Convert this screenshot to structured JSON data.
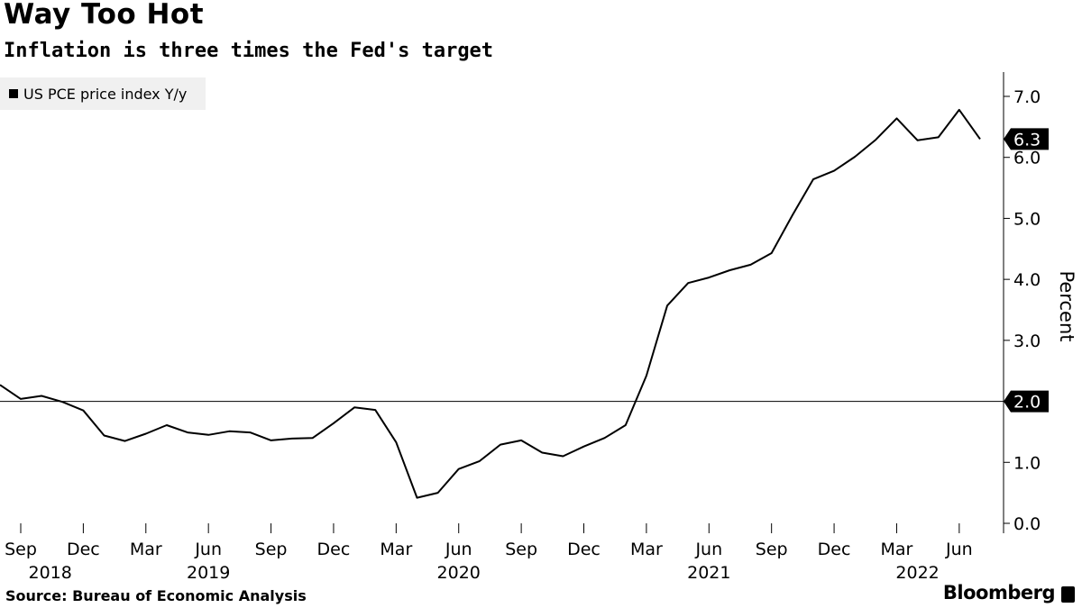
{
  "header": {
    "title": "Way Too Hot",
    "subtitle": "Inflation is three times the Fed's target"
  },
  "legend": {
    "label": "US PCE price index Y/y"
  },
  "footer": {
    "source": "Source: Bureau of Economic Analysis",
    "brand": "Bloomberg"
  },
  "chart_data": {
    "type": "line",
    "title": "Way Too Hot",
    "subtitle": "Inflation is three times the Fed's target",
    "xlabel": "",
    "ylabel": "Percent",
    "ylim": [
      0,
      7.5
    ],
    "yticks": [
      "0.0",
      "1.0",
      "2.0",
      "3.0",
      "4.0",
      "5.0",
      "6.0",
      "7.0"
    ],
    "xtick_labels": [
      "Sep",
      "Dec",
      "Mar",
      "Jun",
      "Sep",
      "Dec",
      "Mar",
      "Jun",
      "Sep",
      "Dec",
      "Mar",
      "Jun",
      "Sep",
      "Dec",
      "Mar",
      "Jun"
    ],
    "year_labels": [
      "2018",
      "2019",
      "2020",
      "2021",
      "2022"
    ],
    "grid": false,
    "legend_position": "top-left",
    "reference_line": {
      "value": 2.0,
      "label": "2.0"
    },
    "last_value_label": "6.3",
    "series": [
      {
        "name": "US PCE price index Y/y",
        "color": "#000000",
        "x": [
          "2018-08",
          "2018-09",
          "2018-10",
          "2018-11",
          "2018-12",
          "2019-01",
          "2019-02",
          "2019-03",
          "2019-04",
          "2019-05",
          "2019-06",
          "2019-07",
          "2019-08",
          "2019-09",
          "2019-10",
          "2019-11",
          "2019-12",
          "2020-01",
          "2020-02",
          "2020-03",
          "2020-04",
          "2020-05",
          "2020-06",
          "2020-07",
          "2020-08",
          "2020-09",
          "2020-10",
          "2020-11",
          "2020-12",
          "2021-01",
          "2021-02",
          "2021-03",
          "2021-04",
          "2021-05",
          "2021-06",
          "2021-07",
          "2021-08",
          "2021-09",
          "2021-10",
          "2021-11",
          "2021-12",
          "2022-01",
          "2022-02",
          "2022-03",
          "2022-04",
          "2022-05",
          "2022-06",
          "2022-07"
        ],
        "values": [
          2.27,
          2.04,
          2.09,
          1.99,
          1.85,
          1.44,
          1.35,
          1.47,
          1.61,
          1.49,
          1.45,
          1.51,
          1.49,
          1.36,
          1.39,
          1.4,
          1.64,
          1.9,
          1.86,
          1.33,
          0.42,
          0.5,
          0.89,
          1.02,
          1.29,
          1.36,
          1.16,
          1.1,
          1.26,
          1.4,
          1.61,
          2.42,
          3.57,
          3.94,
          4.03,
          4.15,
          4.24,
          4.43,
          5.05,
          5.64,
          5.78,
          6.01,
          6.29,
          6.64,
          6.28,
          6.33,
          6.78,
          6.3
        ]
      }
    ]
  }
}
